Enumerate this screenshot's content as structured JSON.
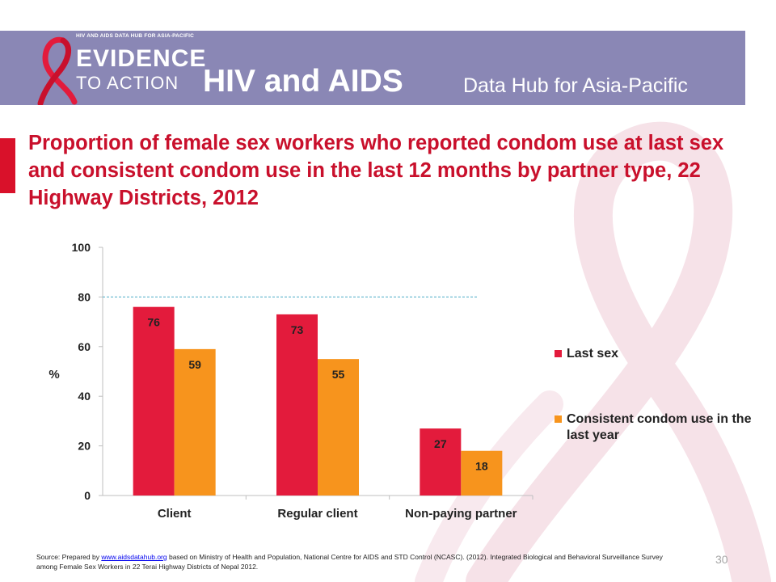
{
  "header": {
    "logo_tagline": "HIV AND AIDS DATA HUB FOR ASIA-PACIFIC",
    "logo_line1": "EVIDENCE",
    "logo_line2": "TO ACTION",
    "title": "HIV and AIDS",
    "subtitle": "Data Hub for Asia-Pacific"
  },
  "slide": {
    "title": "Proportion of female sex workers who reported condom use at last sex and consistent condom use in the last 12 months by partner type, 22 Highway Districts, 2012"
  },
  "colors": {
    "header_band": "#8a87b5",
    "accent": "#d9112a",
    "title_red": "#c9102c",
    "series_last_sex": "#e31b3c",
    "series_consistent": "#f7941d"
  },
  "chart_data": {
    "type": "bar",
    "categories": [
      "Client",
      "Regular client",
      "Non-paying partner"
    ],
    "series": [
      {
        "name": "Last sex",
        "values": [
          76,
          73,
          27
        ]
      },
      {
        "name": "Consistent condom use in the last year",
        "values": [
          59,
          55,
          18
        ]
      }
    ],
    "ylabel": "%",
    "ylim": [
      0,
      100
    ],
    "yticks": [
      "0",
      "20",
      "40",
      "60",
      "80",
      "100"
    ],
    "grid": false,
    "legend": "right",
    "reference_line": 80
  },
  "source": {
    "prefix": "Source: Prepared by ",
    "link": "www.aidsdatahub.org",
    "suffix": " based on Ministry of Health and Population, National Centre for AIDS and STD Control (NCASC). (2012). Integrated Biological and Behavioral Surveillance Survey among Female Sex Workers in 22 Terai Highway Districts of Nepal 2012."
  },
  "page_number": "30"
}
